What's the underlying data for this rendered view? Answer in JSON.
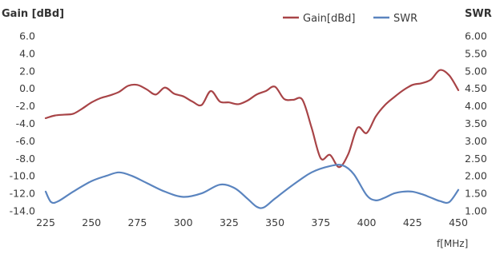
{
  "chart_data": {
    "type": "line",
    "ylabel_left": "Gain [dBd]",
    "ylabel_right": "SWR",
    "xlabel": "f[MHz]",
    "legend_placement": "top-right",
    "grid": false,
    "xlim": [
      225,
      450
    ],
    "ylim_left": [
      -14.0,
      6.0
    ],
    "ylim_right": [
      1.0,
      6.0
    ],
    "x_ticks": [
      "225",
      "250",
      "275",
      "300",
      "325",
      "350",
      "375",
      "400",
      "425",
      "450"
    ],
    "y_left_ticks": [
      "6.0",
      "4.0",
      "2.0",
      "0.0",
      "-2.0",
      "-4.0",
      "-6.0",
      "-8.0",
      "-10.0",
      "-12.0",
      "-14.0"
    ],
    "y_right_ticks": [
      "6.00",
      "5.50",
      "5.00",
      "4.50",
      "4.00",
      "3.50",
      "3.00",
      "2.50",
      "2.00",
      "1.50",
      "1.00"
    ],
    "series": [
      {
        "name": "Gain[dBd]",
        "axis": "left",
        "color": "#a84447",
        "x": [
          225,
          230,
          235,
          240,
          245,
          250,
          255,
          260,
          265,
          270,
          275,
          280,
          285,
          290,
          295,
          300,
          305,
          310,
          315,
          320,
          325,
          330,
          335,
          340,
          345,
          350,
          355,
          360,
          365,
          370,
          375,
          380,
          385,
          390,
          395,
          400,
          405,
          410,
          415,
          420,
          425,
          430,
          435,
          440,
          445,
          450
        ],
        "values": [
          -3.4,
          -3.1,
          -3.0,
          -2.9,
          -2.3,
          -1.6,
          -1.1,
          -0.8,
          -0.4,
          0.3,
          0.4,
          -0.1,
          -0.7,
          0.1,
          -0.6,
          -0.9,
          -1.5,
          -1.9,
          -0.3,
          -1.5,
          -1.6,
          -1.8,
          -1.4,
          -0.7,
          -0.3,
          0.2,
          -1.2,
          -1.3,
          -1.3,
          -4.5,
          -8.0,
          -7.6,
          -9.0,
          -7.5,
          -4.5,
          -5.1,
          -3.2,
          -1.9,
          -1.0,
          -0.2,
          0.4,
          0.6,
          1.0,
          2.1,
          1.5,
          -0.2
        ]
      },
      {
        "name": "SWR",
        "axis": "right",
        "color": "#5a84bf",
        "x": [
          225,
          228,
          232,
          240,
          250,
          258,
          265,
          272,
          280,
          290,
          300,
          310,
          320,
          328,
          335,
          340,
          344,
          350,
          360,
          370,
          380,
          387,
          393,
          400,
          405,
          410,
          415,
          420,
          425,
          430,
          435,
          440,
          445,
          450
        ],
        "values": [
          1.55,
          1.25,
          1.28,
          1.55,
          1.85,
          2.0,
          2.1,
          2.0,
          1.8,
          1.55,
          1.4,
          1.5,
          1.75,
          1.65,
          1.35,
          1.12,
          1.1,
          1.35,
          1.75,
          2.1,
          2.28,
          2.3,
          2.05,
          1.45,
          1.3,
          1.38,
          1.5,
          1.55,
          1.55,
          1.48,
          1.38,
          1.28,
          1.25,
          1.6
        ]
      }
    ]
  }
}
